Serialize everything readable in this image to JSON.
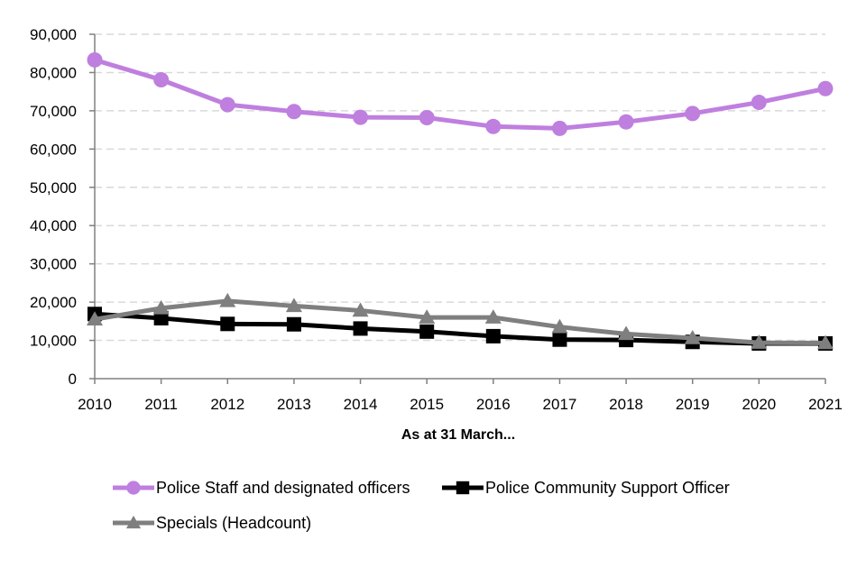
{
  "chart_data": {
    "type": "line",
    "title": "",
    "xlabel": "As at 31 March...",
    "ylabel": "",
    "x": [
      "2010",
      "2011",
      "2012",
      "2013",
      "2014",
      "2015",
      "2016",
      "2017",
      "2018",
      "2019",
      "2020",
      "2021"
    ],
    "ylim": [
      0,
      90000
    ],
    "yticks": [
      0,
      10000,
      20000,
      30000,
      40000,
      50000,
      60000,
      70000,
      80000,
      90000
    ],
    "ytick_labels": [
      "0",
      "10,000",
      "20,000",
      "30,000",
      "40,000",
      "50,000",
      "60,000",
      "70,000",
      "80,000",
      "90,000"
    ],
    "grid": true,
    "legend_position": "bottom",
    "series": [
      {
        "name": "Police Staff and designated officers",
        "color": "#bf7fdf",
        "marker": "circle",
        "values": [
          83300,
          78100,
          71600,
          69800,
          68300,
          68200,
          65900,
          65400,
          67100,
          69300,
          72200,
          75800
        ]
      },
      {
        "name": "Police Community Support Officer",
        "color": "#000000",
        "marker": "square",
        "values": [
          16900,
          15800,
          14300,
          14200,
          13100,
          12300,
          11100,
          10200,
          10100,
          9600,
          9200,
          9200
        ]
      },
      {
        "name": "Specials (Headcount)",
        "color": "#7f7f7f",
        "marker": "triangle",
        "values": [
          15500,
          18400,
          20300,
          19000,
          17800,
          16000,
          16000,
          13500,
          11700,
          10600,
          9400,
          9300
        ]
      }
    ]
  }
}
